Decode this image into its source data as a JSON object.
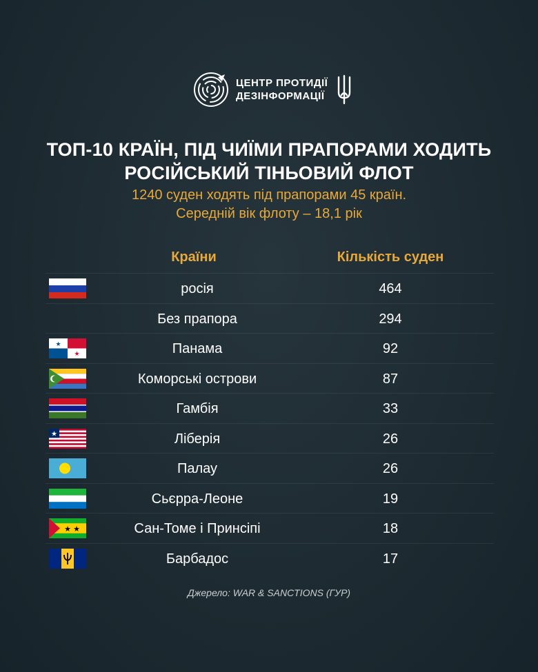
{
  "org": {
    "name_line1": "ЦЕНТР ПРОТИДІЇ",
    "name_line2": "ДЕЗІНФОРМАЦІЇ"
  },
  "title_line1": "ТОП-10 КРАЇН, ПІД ЧИЇМИ ПРАПОРАМИ ХОДИТЬ",
  "title_line2": "РОСІЙСЬКИЙ ТІНЬОВИЙ ФЛОТ",
  "subtitle_line1": "1240 суден ходять під прапорами 45 країн.",
  "subtitle_line2": "Середній вік флоту – 18,1 рік",
  "colors": {
    "background": "#1f2c33",
    "accent": "#e8a93a",
    "text": "#ffffff"
  },
  "chart_data": {
    "type": "table",
    "columns": [
      "Країни",
      "Кількість суден"
    ],
    "rows": [
      {
        "flag": "russia-flag-icon",
        "country": "росія",
        "count": 464
      },
      {
        "flag": "",
        "country": "Без прапора",
        "count": 294
      },
      {
        "flag": "panama-flag-icon",
        "country": "Панама",
        "count": 92
      },
      {
        "flag": "comoros-flag-icon",
        "country": "Коморські острови",
        "count": 87
      },
      {
        "flag": "gambia-flag-icon",
        "country": "Гамбія",
        "count": 33
      },
      {
        "flag": "liberia-flag-icon",
        "country": "Ліберія",
        "count": 26
      },
      {
        "flag": "palau-flag-icon",
        "country": "Палау",
        "count": 26
      },
      {
        "flag": "sierra-leone-flag-icon",
        "country": "Сьєрра-Леоне",
        "count": 19
      },
      {
        "flag": "sao-tome-flag-icon",
        "country": "Сан-Томе і Принсіпі",
        "count": 18
      },
      {
        "flag": "barbados-flag-icon",
        "country": "Барбадос",
        "count": 17
      }
    ]
  },
  "source": "Джерело: WAR & SANCTIONS (ГУР)"
}
